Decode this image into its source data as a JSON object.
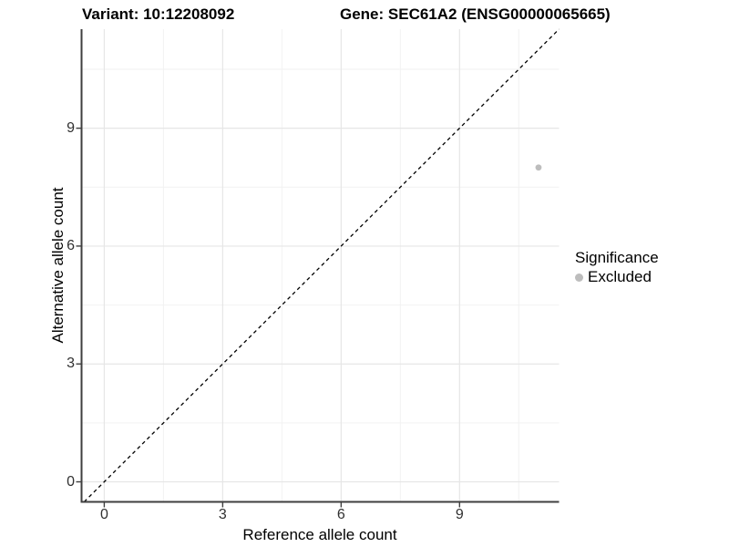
{
  "titles": {
    "variant": "Variant: 10:12208092",
    "gene": "Gene: SEC61A2 (ENSG00000065665)"
  },
  "chart_data": {
    "type": "scatter",
    "xlabel": "Reference allele count",
    "ylabel": "Alternative allele count",
    "xlim": [
      -0.575,
      11.52
    ],
    "ylim": [
      -0.51,
      11.52
    ],
    "x_ticks": [
      0,
      3,
      6,
      9
    ],
    "y_ticks": [
      0,
      3,
      6,
      9
    ],
    "x_minor_gridlines": [
      1.5,
      4.5,
      7.5,
      10.5
    ],
    "y_minor_gridlines": [
      1.5,
      4.5,
      7.5,
      10.5
    ],
    "grid": true,
    "reference_line": {
      "type": "identity y=x",
      "style": "dashed",
      "color": "#000000"
    },
    "series": [
      {
        "name": "Excluded",
        "color": "#bdbdbd",
        "points": [
          {
            "x": 11,
            "y": 8
          }
        ]
      }
    ],
    "legend": {
      "title": "Significance",
      "position": "right",
      "items": [
        {
          "label": "Excluded",
          "color": "#bdbdbd"
        }
      ]
    }
  },
  "colors": {
    "major_grid": "#e6e6e6",
    "minor_grid": "#f2f2f2",
    "axis_line": "#3f3f3f",
    "tick_text": "#303030"
  }
}
